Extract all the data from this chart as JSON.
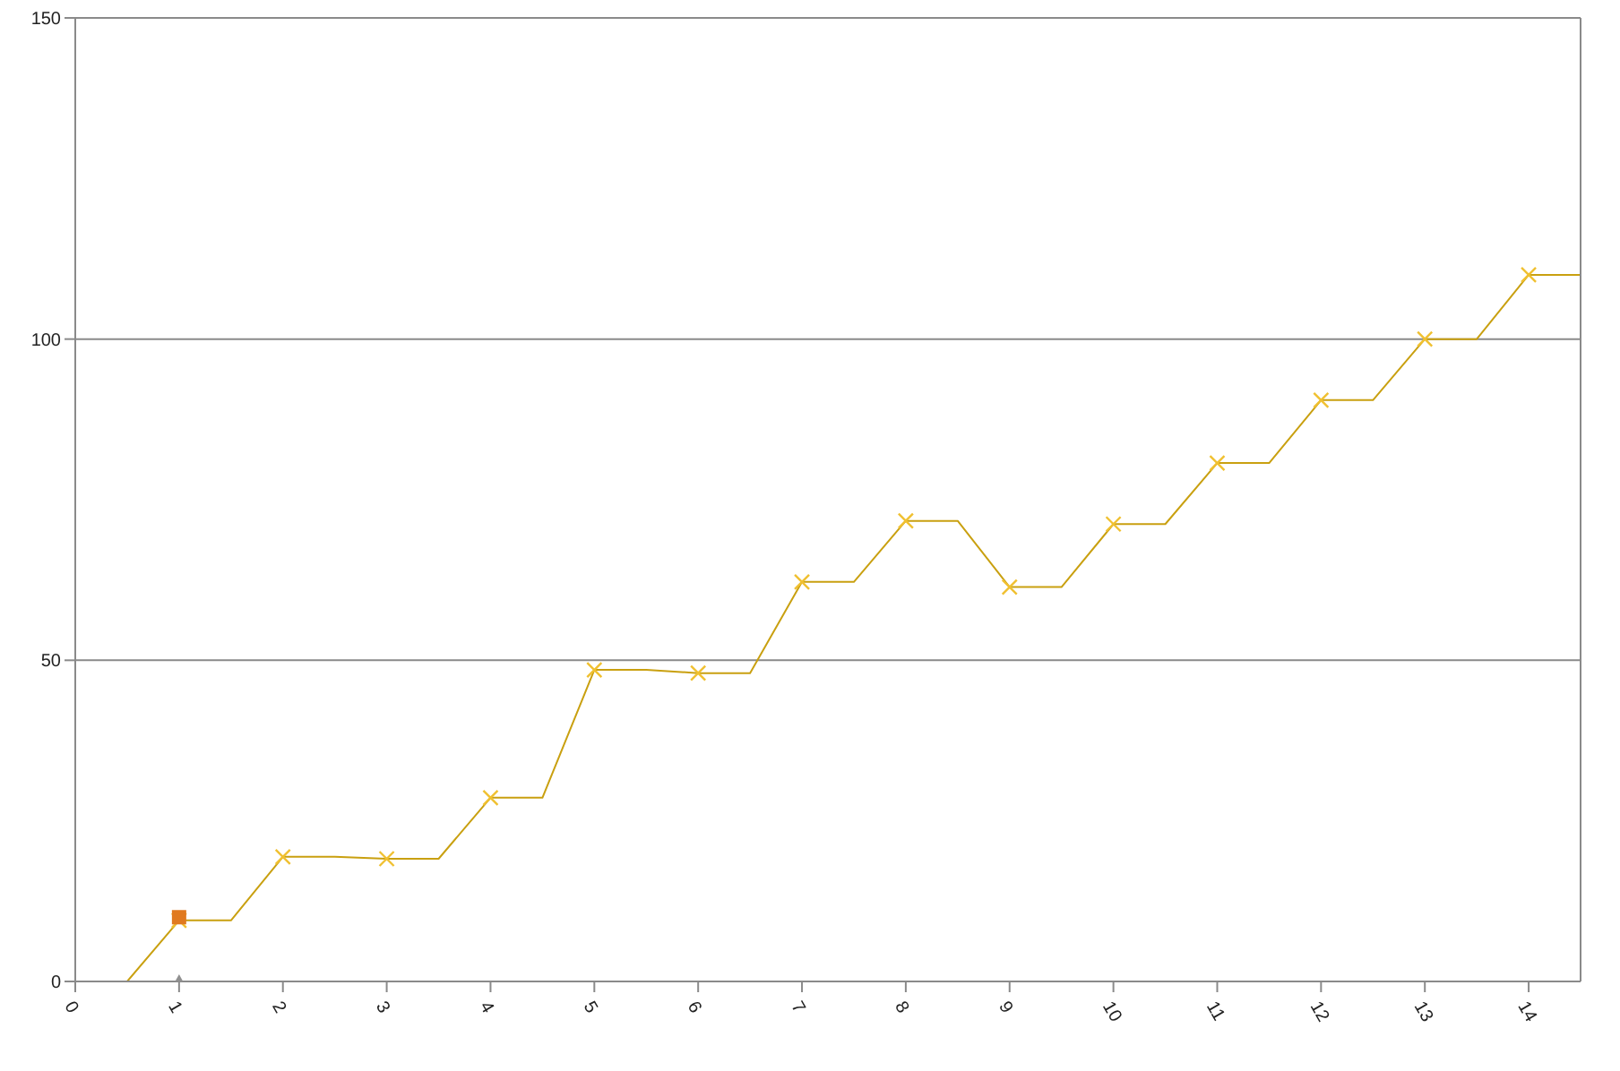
{
  "chart_data": {
    "type": "line",
    "xlim": [
      0,
      14.5
    ],
    "xticks": [
      0,
      1,
      2,
      3,
      4,
      5,
      6,
      7,
      8,
      9,
      10,
      11,
      12,
      13,
      14
    ],
    "ylim": [
      0,
      150
    ],
    "yticks": [
      0,
      50,
      100,
      150
    ],
    "grid": "y",
    "series": [
      {
        "color": "#c9a010",
        "marker": "none",
        "x": [
          0.5,
          1,
          1.5,
          2,
          2.5,
          3,
          3.5,
          4,
          4.5,
          5,
          5.5,
          6,
          6.5,
          7,
          7.5,
          8,
          8.5,
          9,
          9.5,
          10,
          10.5,
          11,
          11.5,
          12,
          12.5,
          13,
          13.5,
          14,
          14.5
        ],
        "values": [
          0,
          9.5,
          9.5,
          19.4,
          19.4,
          19.1,
          19.1,
          28.6,
          28.6,
          48.5,
          48.5,
          48,
          48,
          62.2,
          62.2,
          71.7,
          71.7,
          61.4,
          61.4,
          71.2,
          71.2,
          80.7,
          80.7,
          90.5,
          90.5,
          100,
          100,
          110,
          110
        ]
      },
      {
        "type": "scatter",
        "color": "#f0c030",
        "marker": "cross",
        "x": [
          1,
          2,
          3,
          4,
          5,
          6,
          7,
          8,
          9,
          10,
          11,
          12,
          13,
          14
        ],
        "values": [
          9.5,
          19.4,
          19.1,
          28.6,
          48.5,
          48,
          62.2,
          71.7,
          61.4,
          71.2,
          80.7,
          90.5,
          100,
          110
        ]
      },
      {
        "type": "scatter",
        "color": "#e07a20",
        "marker": "square",
        "x": [
          1
        ],
        "values": [
          10
        ]
      },
      {
        "type": "scatter",
        "color": "#909090",
        "marker": "triangle",
        "x": [
          1
        ],
        "values": [
          0
        ]
      }
    ]
  }
}
